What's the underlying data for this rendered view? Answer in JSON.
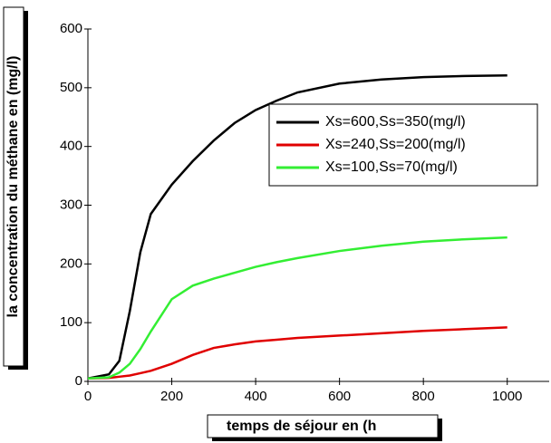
{
  "chart_data": {
    "type": "line",
    "xlabel": "temps de séjour en (h",
    "ylabel": "la concentration du méthane en (mg/l)",
    "x": [
      0,
      50,
      75,
      100,
      125,
      150,
      200,
      250,
      300,
      350,
      400,
      450,
      500,
      600,
      700,
      800,
      900,
      1000
    ],
    "series": [
      {
        "name": "Xs=600,Ss=350(mg/l)",
        "color": "#000000",
        "values": [
          5,
          12,
          35,
          120,
          220,
          285,
          335,
          375,
          410,
          440,
          462,
          478,
          492,
          507,
          514,
          518,
          520,
          521
        ]
      },
      {
        "name": "Xs=240,Ss=200(mg/l)",
        "color": "#e00000",
        "values": [
          5,
          6,
          8,
          10,
          14,
          18,
          30,
          45,
          57,
          63,
          68,
          71,
          74,
          78,
          82,
          86,
          89,
          92
        ]
      },
      {
        "name": "Xs=100,Ss=70(mg/l)",
        "color": "#33ee33",
        "values": [
          5,
          7,
          15,
          30,
          55,
          85,
          140,
          163,
          175,
          185,
          195,
          203,
          210,
          222,
          231,
          238,
          242,
          245
        ]
      }
    ],
    "xlim": [
      0,
      1100
    ],
    "ylim": [
      0,
      600
    ],
    "xticks": [
      0,
      200,
      400,
      600,
      800,
      1000
    ],
    "yticks": [
      0,
      100,
      200,
      300,
      400,
      500,
      600
    ],
    "legend": "right"
  }
}
